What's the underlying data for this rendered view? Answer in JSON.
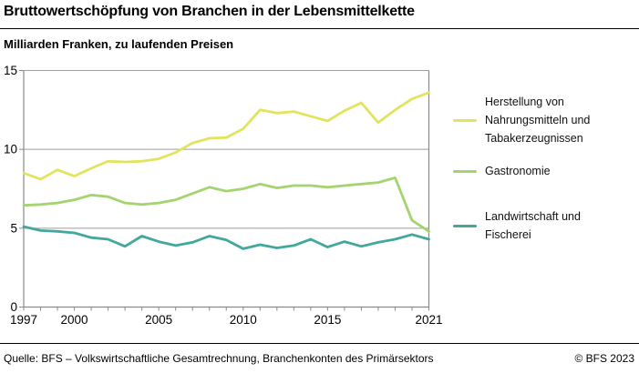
{
  "header": {
    "title": "Bruttowertschöpfung von Branchen in der Lebensmittelkette"
  },
  "subtitle": "Milliarden Franken, zu laufenden Preisen",
  "footer": {
    "source": "Quelle: BFS – Volkswirtschaftliche Gesamtrechnung, Branchenkonten des Primärsektors",
    "copyright": "© BFS 2023"
  },
  "colors": {
    "grid": "#9e9e9e",
    "axis": "#8a8a8a",
    "text": "#000000"
  },
  "chart_data": {
    "type": "line",
    "title": "Bruttowertschöpfung von Branchen in der Lebensmittelkette",
    "ylabel": "Milliarden Franken, zu laufenden Preisen",
    "xlabel": "",
    "x": [
      1997,
      1998,
      1999,
      2000,
      2001,
      2002,
      2003,
      2004,
      2005,
      2006,
      2007,
      2008,
      2009,
      2010,
      2011,
      2012,
      2013,
      2014,
      2015,
      2016,
      2017,
      2018,
      2019,
      2020,
      2021
    ],
    "series": [
      {
        "name": "Herstellung von Nahrungsmitteln und Tabakerzeugnissen",
        "color": "#e2e45f",
        "values": [
          8.5,
          8.1,
          8.7,
          8.3,
          8.8,
          9.25,
          9.2,
          9.25,
          9.4,
          9.8,
          10.4,
          10.7,
          10.75,
          11.3,
          12.5,
          12.3,
          12.4,
          12.1,
          11.8,
          12.45,
          12.95,
          11.7,
          12.5,
          13.2,
          13.6
        ]
      },
      {
        "name": "Gastronomie",
        "color": "#a4d470",
        "values": [
          6.45,
          6.5,
          6.6,
          6.8,
          7.1,
          7.0,
          6.6,
          6.5,
          6.6,
          6.8,
          7.2,
          7.6,
          7.35,
          7.5,
          7.8,
          7.55,
          7.7,
          7.7,
          7.6,
          7.7,
          7.8,
          7.9,
          8.2,
          5.5,
          4.8
        ]
      },
      {
        "name": "Landwirtschaft und Fischerei",
        "color": "#42a79c",
        "values": [
          5.1,
          4.85,
          4.8,
          4.7,
          4.4,
          4.3,
          3.85,
          4.5,
          4.15,
          3.9,
          4.1,
          4.5,
          4.25,
          3.7,
          3.95,
          3.75,
          3.9,
          4.3,
          3.8,
          4.15,
          3.85,
          4.1,
          4.3,
          4.6,
          4.3
        ]
      }
    ],
    "xlim": [
      1997,
      2021
    ],
    "ylim": [
      0,
      15
    ],
    "y_ticks": [
      0,
      5,
      10,
      15
    ],
    "x_tick_labels": [
      1997,
      2000,
      2005,
      2010,
      2015,
      2021
    ],
    "grid": true,
    "legend_position": "right"
  },
  "legend_items": [
    {
      "label": "Herstellung von Nahrungsmitteln und Tabakerzeugnissen"
    },
    {
      "label": "Gastronomie"
    },
    {
      "label": "Landwirtschaft und Fischerei"
    }
  ]
}
